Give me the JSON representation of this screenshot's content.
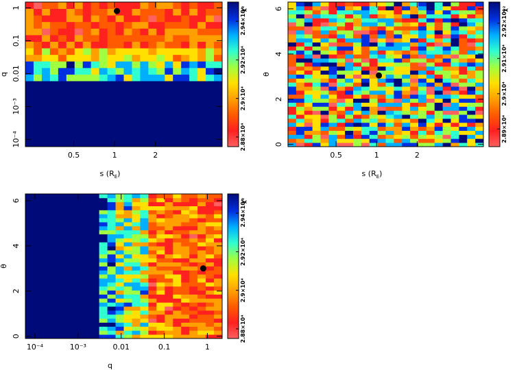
{
  "chart_data": [
    {
      "type": "heatmap",
      "id": "panel-s-q",
      "xlabel": "s (R_E)",
      "ylabel": "q",
      "xscale": "log",
      "yscale": "log",
      "xlim": [
        0.22,
        6.2
      ],
      "ylim": [
        6e-05,
        1.5
      ],
      "x_ticks": [
        {
          "value": 0.5,
          "label": "0.5"
        },
        {
          "value": 1,
          "label": "1"
        },
        {
          "value": 2,
          "label": "2"
        }
      ],
      "y_ticks": [
        {
          "value": 0.0001,
          "label": "10⁻⁴"
        },
        {
          "value": 0.001,
          "label": "10⁻³"
        },
        {
          "value": 0.01,
          "label": "0.01"
        },
        {
          "value": 0.1,
          "label": "0.1"
        },
        {
          "value": 1,
          "label": "1"
        }
      ],
      "grid_nx": 24,
      "grid_ny": 22,
      "best_fit": {
        "x": 1.04,
        "y": 0.8
      },
      "colorbar": {
        "label": "χ²",
        "ticks": [
          {
            "value": 28800,
            "label": "2.88×10⁴"
          },
          {
            "value": 29000,
            "label": "2.9×10⁴"
          },
          {
            "value": 29200,
            "label": "2.92×10⁴"
          },
          {
            "value": 29400,
            "label": "2.94×10⁴"
          }
        ],
        "range": [
          28750,
          29500
        ]
      }
    },
    {
      "type": "heatmap",
      "id": "panel-s-theta",
      "xlabel": "s (R_E)",
      "ylabel": "θ",
      "xscale": "log",
      "yscale": "linear",
      "xlim": [
        0.22,
        6.2
      ],
      "ylim": [
        -0.1,
        6.3
      ],
      "x_ticks": [
        {
          "value": 0.5,
          "label": "0.5"
        },
        {
          "value": 1,
          "label": "1"
        },
        {
          "value": 2,
          "label": "2"
        }
      ],
      "y_ticks": [
        {
          "value": 0,
          "label": "0"
        },
        {
          "value": 2,
          "label": "2"
        },
        {
          "value": 4,
          "label": "4"
        },
        {
          "value": 6,
          "label": "6"
        }
      ],
      "grid_nx": 24,
      "grid_ny": 36,
      "best_fit": {
        "x": 1.04,
        "y": 3.05
      },
      "colorbar": {
        "label": "χ²",
        "ticks": [
          {
            "value": 28900,
            "label": "2.89×10⁴"
          },
          {
            "value": 29000,
            "label": "2.9×10⁴"
          },
          {
            "value": 29100,
            "label": "2.91×10⁴"
          },
          {
            "value": 29200,
            "label": "2.92×10⁴"
          }
        ],
        "range": [
          28850,
          29260
        ]
      }
    },
    {
      "type": "heatmap",
      "id": "panel-q-theta",
      "xlabel": "q",
      "ylabel": "θ",
      "xscale": "log",
      "yscale": "linear",
      "xlim": [
        6e-05,
        2.2
      ],
      "ylim": [
        -0.1,
        6.3
      ],
      "x_ticks": [
        {
          "value": 0.0001,
          "label": "10⁻⁴"
        },
        {
          "value": 0.001,
          "label": "10⁻³"
        },
        {
          "value": 0.01,
          "label": "0.01"
        },
        {
          "value": 0.1,
          "label": "0.1"
        },
        {
          "value": 1,
          "label": "1"
        }
      ],
      "y_ticks": [
        {
          "value": 0,
          "label": "0"
        },
        {
          "value": 2,
          "label": "2"
        },
        {
          "value": 4,
          "label": "4"
        },
        {
          "value": 6,
          "label": "6"
        }
      ],
      "grid_nx": 24,
      "grid_ny": 36,
      "best_fit": {
        "x": 0.8,
        "y": 3.0
      },
      "colorbar": {
        "label": "χ²",
        "ticks": [
          {
            "value": 28800,
            "label": "2.88×10⁴"
          },
          {
            "value": 29000,
            "label": "2.9×10⁴"
          },
          {
            "value": 29200,
            "label": "2.92×10⁴"
          },
          {
            "value": 29400,
            "label": "2.94×10⁴"
          }
        ],
        "range": [
          28750,
          29500
        ]
      }
    }
  ],
  "colors": {
    "background_cell": "#000a78",
    "marker": "#000000",
    "colormap": [
      "#ff6060",
      "#ff2020",
      "#ff5a00",
      "#ffa000",
      "#ffe000",
      "#a0ff40",
      "#30ffd0",
      "#00b0ff",
      "#0030e0",
      "#000a78"
    ]
  }
}
